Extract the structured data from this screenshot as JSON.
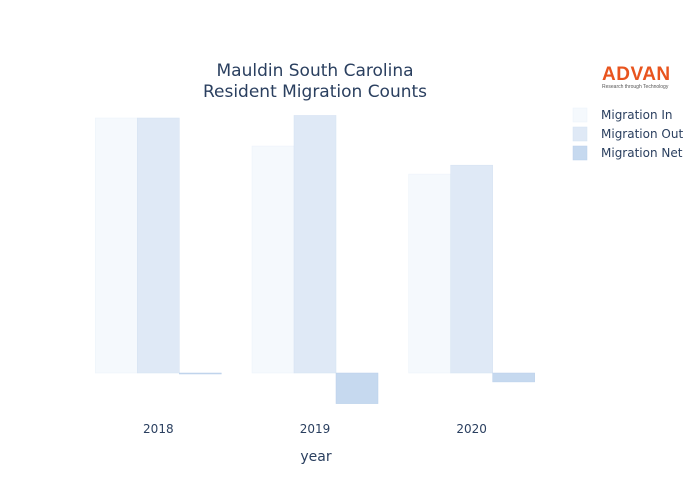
{
  "chart_data": {
    "type": "bar",
    "title": [
      "Mauldin South Carolina",
      "Resident Migration Counts"
    ],
    "xlabel": "year",
    "ylabel": "",
    "categories": [
      "2018",
      "2019",
      "2020"
    ],
    "series": [
      {
        "name": "Migration In",
        "values": [
          1000,
          890,
          780
        ],
        "color": "#f5f9fd",
        "stroke": "#eaf1fa"
      },
      {
        "name": "Migration Out",
        "values": [
          1000,
          1010,
          815
        ],
        "color": "#dfe9f6",
        "stroke": "#d4e2f2"
      },
      {
        "name": "Migration Net",
        "values": [
          0,
          -120,
          -35
        ],
        "color": "#c6d9ef",
        "stroke": "#b9d0ea"
      }
    ],
    "ylim": [
      -160,
      1200
    ],
    "grid": false,
    "legend": "top-right"
  },
  "logo": {
    "word": "ADVAN",
    "tagline": "Research through Technology"
  }
}
